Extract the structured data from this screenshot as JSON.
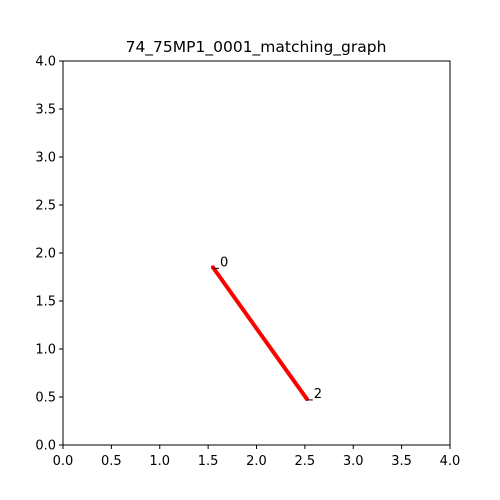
{
  "chart_data": {
    "type": "line",
    "title": "74_75MP1_0001_matching_graph",
    "xlabel": "",
    "ylabel": "",
    "xlim": [
      0,
      4
    ],
    "ylim": [
      0,
      4
    ],
    "x_ticks": [
      "0.0",
      "0.5",
      "1.0",
      "1.5",
      "2.0",
      "2.5",
      "3.0",
      "3.5",
      "4.0"
    ],
    "y_ticks": [
      "0.0",
      "0.5",
      "1.0",
      "1.5",
      "2.0",
      "2.5",
      "3.0",
      "3.5",
      "4.0"
    ],
    "grid": false,
    "line_color": "#ff0000",
    "nodes": [
      {
        "label": "0",
        "x": 1.55,
        "y": 1.85
      },
      {
        "label": "2",
        "x": 2.52,
        "y": 0.48
      }
    ],
    "edges": [
      {
        "from": 0,
        "to": 1
      }
    ]
  }
}
